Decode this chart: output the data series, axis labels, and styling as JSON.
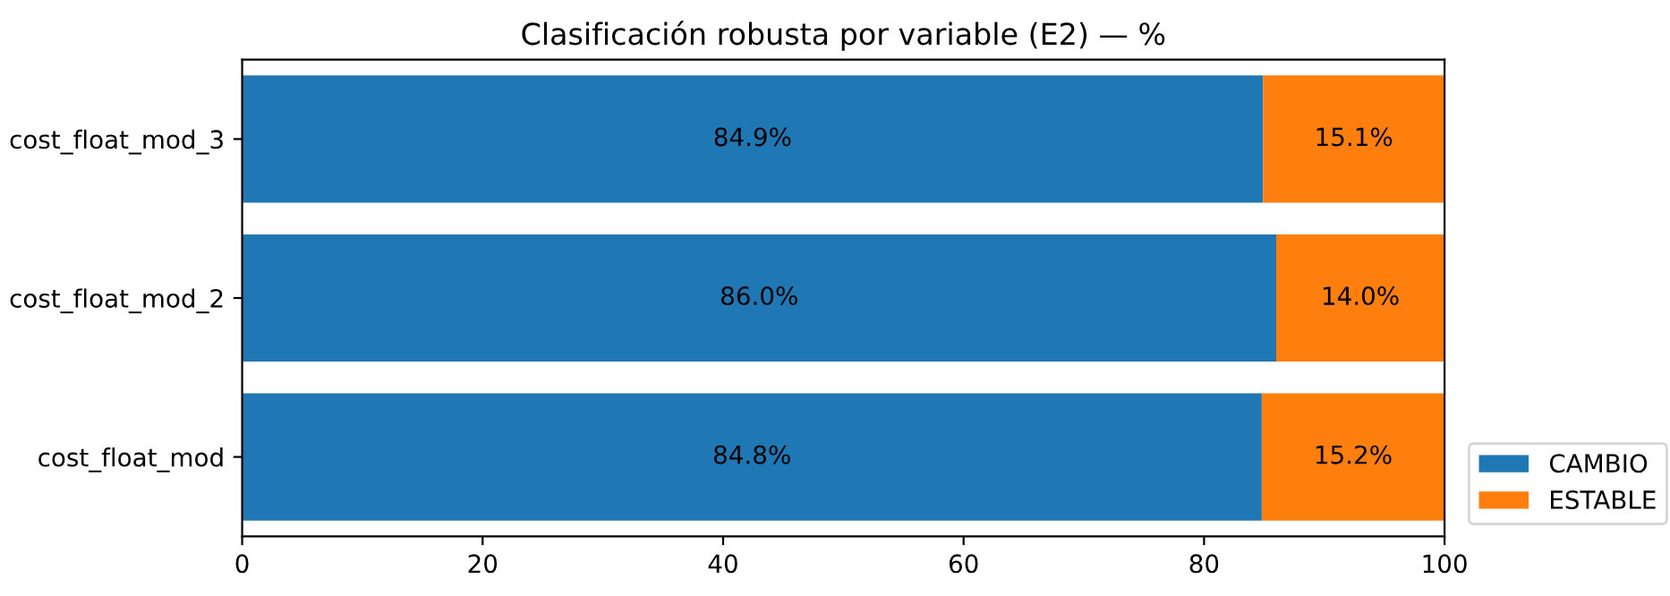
{
  "chart_data": {
    "type": "bar",
    "orientation": "horizontal",
    "stacked": true,
    "title": "Clasificación robusta por variable (E2) — %",
    "categories": [
      "cost_float_mod_3",
      "cost_float_mod_2",
      "cost_float_mod"
    ],
    "series": [
      {
        "name": "CAMBIO",
        "color": "#1f77b4",
        "values": [
          84.9,
          86.0,
          84.8
        ],
        "value_labels": [
          "84.9%",
          "86.0%",
          "84.8%"
        ]
      },
      {
        "name": "ESTABLE",
        "color": "#ff7f0e",
        "values": [
          15.1,
          14.0,
          15.2
        ],
        "value_labels": [
          "15.1%",
          "14.0%",
          "15.2%"
        ]
      }
    ],
    "xlim": [
      0,
      100
    ],
    "xticks": [
      0,
      20,
      40,
      60,
      80,
      100
    ],
    "legend": "bottom right",
    "grid": false
  }
}
